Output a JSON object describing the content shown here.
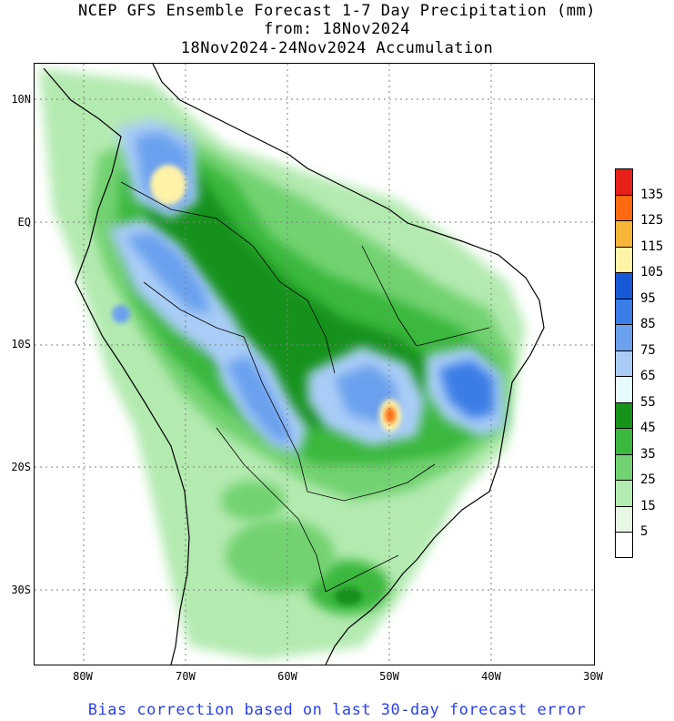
{
  "title": {
    "line1": "NCEP GFS Ensemble Forecast 1-7 Day Precipitation (mm)",
    "line2": "from: 18Nov2024",
    "line3": "18Nov2024-24Nov2024 Accumulation"
  },
  "axes": {
    "lat_labels": [
      "10N",
      "EQ",
      "10S",
      "20S",
      "30S"
    ],
    "lon_labels": [
      "80W",
      "70W",
      "60W",
      "50W",
      "40W",
      "30W"
    ]
  },
  "legend": {
    "labels": [
      "135",
      "125",
      "115",
      "105",
      "95",
      "85",
      "75",
      "65",
      "55",
      "45",
      "35",
      "25",
      "15",
      "5"
    ],
    "colors": [
      "#e8201a",
      "#ff6a10",
      "#f7b63a",
      "#fff3a8",
      "#1658d6",
      "#3b7de6",
      "#6aa0ee",
      "#a9cdf6",
      "#e6fbff",
      "#17921b",
      "#3ab83e",
      "#72d271",
      "#b3eab0",
      "#e6f8e3",
      "#ffffff"
    ]
  },
  "footer": "Bias correction based on last 30-day forecast error",
  "map": {
    "projection": "lat-lon",
    "lon_range": [
      -85,
      -30
    ],
    "lat_range": [
      -36,
      13
    ],
    "gridlines": "dotted",
    "coastline_color": "#000000"
  }
}
